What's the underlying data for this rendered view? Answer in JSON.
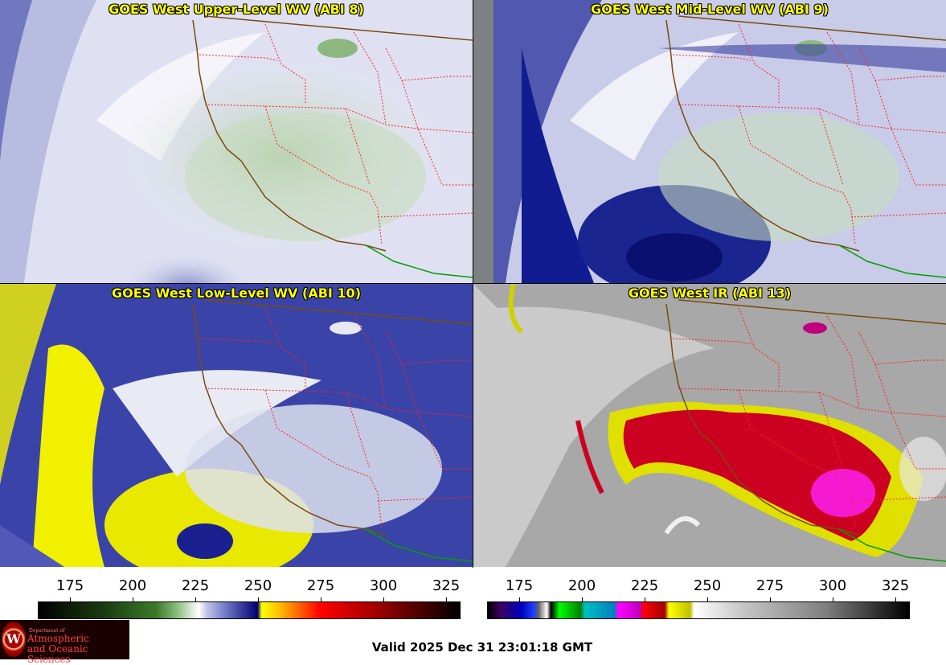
{
  "panels": [
    {
      "title": "GOES West Upper-Level WV (ABI 8)",
      "palette": "wv-upper"
    },
    {
      "title": "GOES West Mid-Level WV (ABI 9)",
      "palette": "wv-mid"
    },
    {
      "title": "GOES West Low-Level WV (ABI 10)",
      "palette": "wv-low"
    },
    {
      "title": "GOES West IR (ABI 13)",
      "palette": "ir"
    }
  ],
  "colorbars": [
    {
      "name": "water-vapor-colorbar",
      "ticks": [
        "175",
        "200",
        "225",
        "250",
        "275",
        "300",
        "325"
      ]
    },
    {
      "name": "ir-colorbar",
      "ticks": [
        "175",
        "200",
        "225",
        "250",
        "275",
        "300",
        "325"
      ]
    }
  ],
  "logo": {
    "dept_line": "Department of",
    "name_line1": "Atmospheric",
    "name_line2": "and Oceanic Sciences",
    "letter": "W"
  },
  "footer": {
    "valid": "Valid 2025 Dec 31 23:01:18 GMT"
  },
  "colors": {
    "title_text": "#ffff00",
    "state_borders": "#ff2020",
    "coastline": "#7a4a10",
    "mexico_border": "#00a000"
  }
}
